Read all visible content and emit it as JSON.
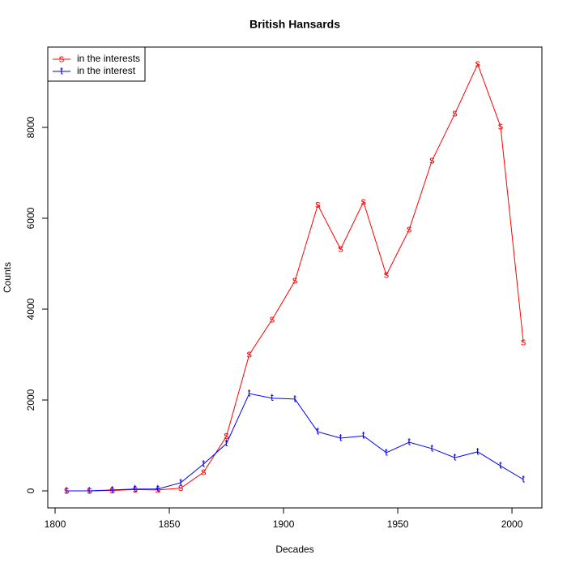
{
  "chart_data": {
    "type": "line",
    "title": "British Hansards",
    "x_label": "Decades",
    "y_label": "Counts",
    "x": [
      1805,
      1815,
      1825,
      1835,
      1845,
      1855,
      1865,
      1875,
      1885,
      1895,
      1905,
      1915,
      1925,
      1935,
      1945,
      1955,
      1965,
      1975,
      1985,
      1995,
      2005
    ],
    "series": [
      {
        "name": "in the interests",
        "color": "#ff0000",
        "pch": "s",
        "values": [
          0,
          0,
          10,
          30,
          20,
          60,
          410,
          1200,
          3000,
          3770,
          4620,
          6290,
          5320,
          6360,
          4750,
          5750,
          7270,
          8300,
          9390,
          8020,
          3270
        ]
      },
      {
        "name": "in the interest",
        "color": "#0000ff",
        "pch": "t",
        "values": [
          0,
          0,
          20,
          40,
          40,
          180,
          590,
          1040,
          2140,
          2040,
          2020,
          1300,
          1160,
          1210,
          840,
          1070,
          930,
          730,
          860,
          550,
          250
        ]
      }
    ],
    "xlim": [
      1796.8,
      2013.1
    ],
    "ylim": [
      -375,
      9768
    ],
    "xticks": [
      1800,
      1850,
      1900,
      1950,
      2000
    ],
    "yticks": [
      0,
      2000,
      4000,
      6000,
      8000
    ],
    "legend": "top-left"
  }
}
